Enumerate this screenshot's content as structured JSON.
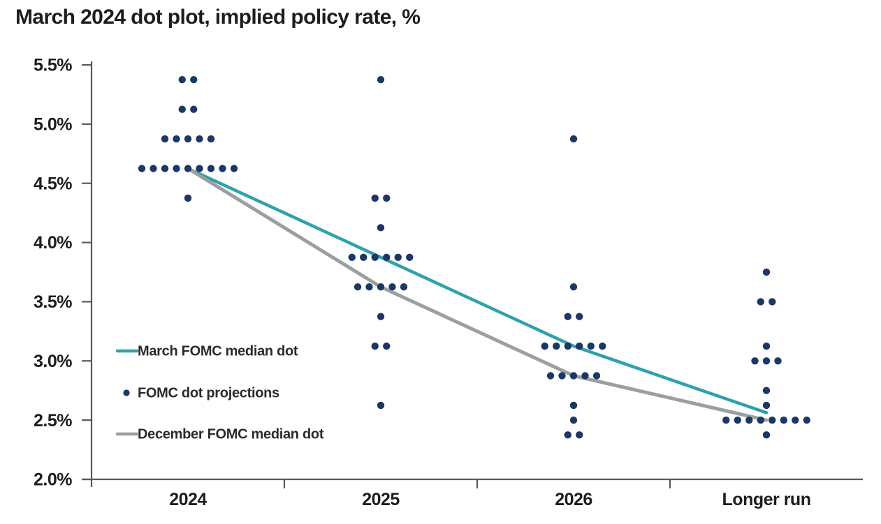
{
  "title": "March 2024 dot plot, implied policy rate, %",
  "chart_data": {
    "type": "scatter",
    "subtype": "fomc-dot-plot",
    "categories": [
      "2024",
      "2025",
      "2026",
      "Longer run"
    ],
    "ylim": [
      2.0,
      5.5
    ],
    "ytick_step": 0.5,
    "ytick_labels": [
      "5.5%",
      "5.0%",
      "4.5%",
      "4.0%",
      "3.5%",
      "3.0%",
      "2.5%",
      "2.0%"
    ],
    "grid": false,
    "legend_position": "inside-left",
    "dot_color": "#1b3766",
    "dots": [
      {
        "category": "2024",
        "levels": [
          {
            "rate": 5.375,
            "count": 2
          },
          {
            "rate": 5.125,
            "count": 2
          },
          {
            "rate": 4.875,
            "count": 5
          },
          {
            "rate": 4.625,
            "count": 9
          },
          {
            "rate": 4.375,
            "count": 1
          }
        ]
      },
      {
        "category": "2025",
        "levels": [
          {
            "rate": 5.375,
            "count": 1
          },
          {
            "rate": 4.375,
            "count": 2
          },
          {
            "rate": 4.125,
            "count": 1
          },
          {
            "rate": 3.875,
            "count": 6
          },
          {
            "rate": 3.625,
            "count": 5
          },
          {
            "rate": 3.375,
            "count": 1
          },
          {
            "rate": 3.125,
            "count": 2
          },
          {
            "rate": 2.625,
            "count": 1
          }
        ]
      },
      {
        "category": "2026",
        "levels": [
          {
            "rate": 4.875,
            "count": 1
          },
          {
            "rate": 3.625,
            "count": 1
          },
          {
            "rate": 3.375,
            "count": 2
          },
          {
            "rate": 3.125,
            "count": 6
          },
          {
            "rate": 2.875,
            "count": 5
          },
          {
            "rate": 2.625,
            "count": 1
          },
          {
            "rate": 2.5,
            "count": 1
          },
          {
            "rate": 2.375,
            "count": 2
          }
        ]
      },
      {
        "category": "Longer run",
        "levels": [
          {
            "rate": 3.75,
            "count": 1
          },
          {
            "rate": 3.5,
            "count": 2
          },
          {
            "rate": 3.125,
            "count": 1
          },
          {
            "rate": 3.0,
            "count": 3
          },
          {
            "rate": 2.75,
            "count": 1
          },
          {
            "rate": 2.625,
            "count": 1
          },
          {
            "rate": 2.5,
            "count": 8
          },
          {
            "rate": 2.375,
            "count": 1
          }
        ]
      }
    ],
    "series": [
      {
        "name": "March FOMC median dot",
        "color": "#2fa1ab",
        "values": [
          4.625,
          3.875,
          3.125,
          2.5625
        ]
      },
      {
        "name": "December FOMC median dot",
        "color": "#9b9fa0",
        "values": [
          4.625,
          3.625,
          2.875,
          2.5
        ]
      }
    ],
    "legend": [
      {
        "swatch": "line",
        "color": "#2fa1ab",
        "label": "March FOMC median dot"
      },
      {
        "swatch": "dot",
        "color": "#1b3766",
        "label": "FOMC dot projections"
      },
      {
        "swatch": "line",
        "color": "#9b9fa0",
        "label": "December FOMC median dot"
      }
    ]
  }
}
